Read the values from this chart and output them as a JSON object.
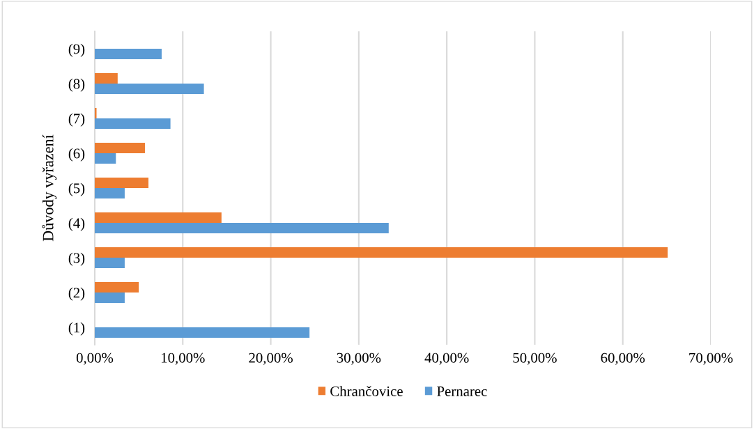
{
  "chart_data": {
    "type": "bar",
    "orientation": "horizontal",
    "ylabel": "Důvody vyřazení",
    "categories": [
      "(9)",
      "(8)",
      "(7)",
      "(6)",
      "(5)",
      "(4)",
      "(3)",
      "(2)",
      "(1)"
    ],
    "series": [
      {
        "name": "Chrančovice",
        "color": "#ed7d31",
        "values": [
          null,
          2.6,
          0.2,
          5.7,
          6.1,
          14.4,
          65.1,
          5.0,
          null
        ]
      },
      {
        "name": "Pernarec",
        "color": "#5b9bd5",
        "values": [
          7.6,
          12.4,
          8.6,
          2.4,
          3.4,
          33.4,
          3.4,
          3.4,
          24.4
        ]
      }
    ],
    "xlim": [
      0,
      70
    ],
    "xticks": [
      {
        "value": 0,
        "label": "0,00%"
      },
      {
        "value": 10,
        "label": "10,00%"
      },
      {
        "value": 20,
        "label": "20,00%"
      },
      {
        "value": 30,
        "label": "30,00%"
      },
      {
        "value": 40,
        "label": "40,00%"
      },
      {
        "value": 50,
        "label": "50,00%"
      },
      {
        "value": 60,
        "label": "60,00%"
      },
      {
        "value": 70,
        "label": "70,00%"
      }
    ],
    "grid": "x",
    "legend": "bottom"
  }
}
